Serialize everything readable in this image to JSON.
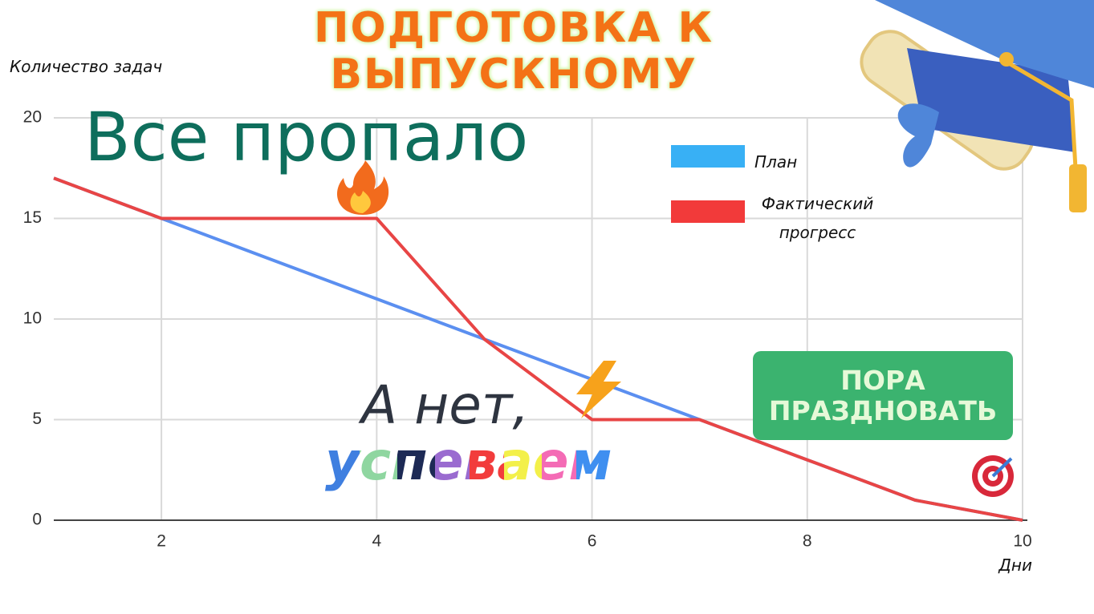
{
  "chart_data": {
    "type": "line",
    "title": "ПОДГОТОВКА К ВЫПУСКНОМУ",
    "y_label": "Количество задач",
    "x_label": "Дни",
    "x": [
      1,
      2,
      3,
      4,
      5,
      6,
      7,
      8,
      9,
      10
    ],
    "series": [
      {
        "name": "План",
        "color": "#5b8ff0",
        "values": [
          17,
          15,
          13,
          11,
          9,
          7,
          5,
          3,
          1,
          0
        ]
      },
      {
        "name": "Фактический прогресс",
        "color": "#e84545",
        "values": [
          17,
          15,
          15,
          15,
          9,
          5,
          5,
          3,
          1,
          0
        ]
      }
    ],
    "xlim": [
      1,
      10
    ],
    "xticks": [
      2,
      4,
      6,
      8,
      10
    ],
    "ylim": [
      0,
      20
    ],
    "yticks": [
      0,
      5,
      10,
      15,
      20
    ],
    "grid": true,
    "annotations": [
      "Все пропало",
      "А нет,",
      "успеваем",
      "ПОРА ПРАЗДНОВАТЬ"
    ]
  }
}
